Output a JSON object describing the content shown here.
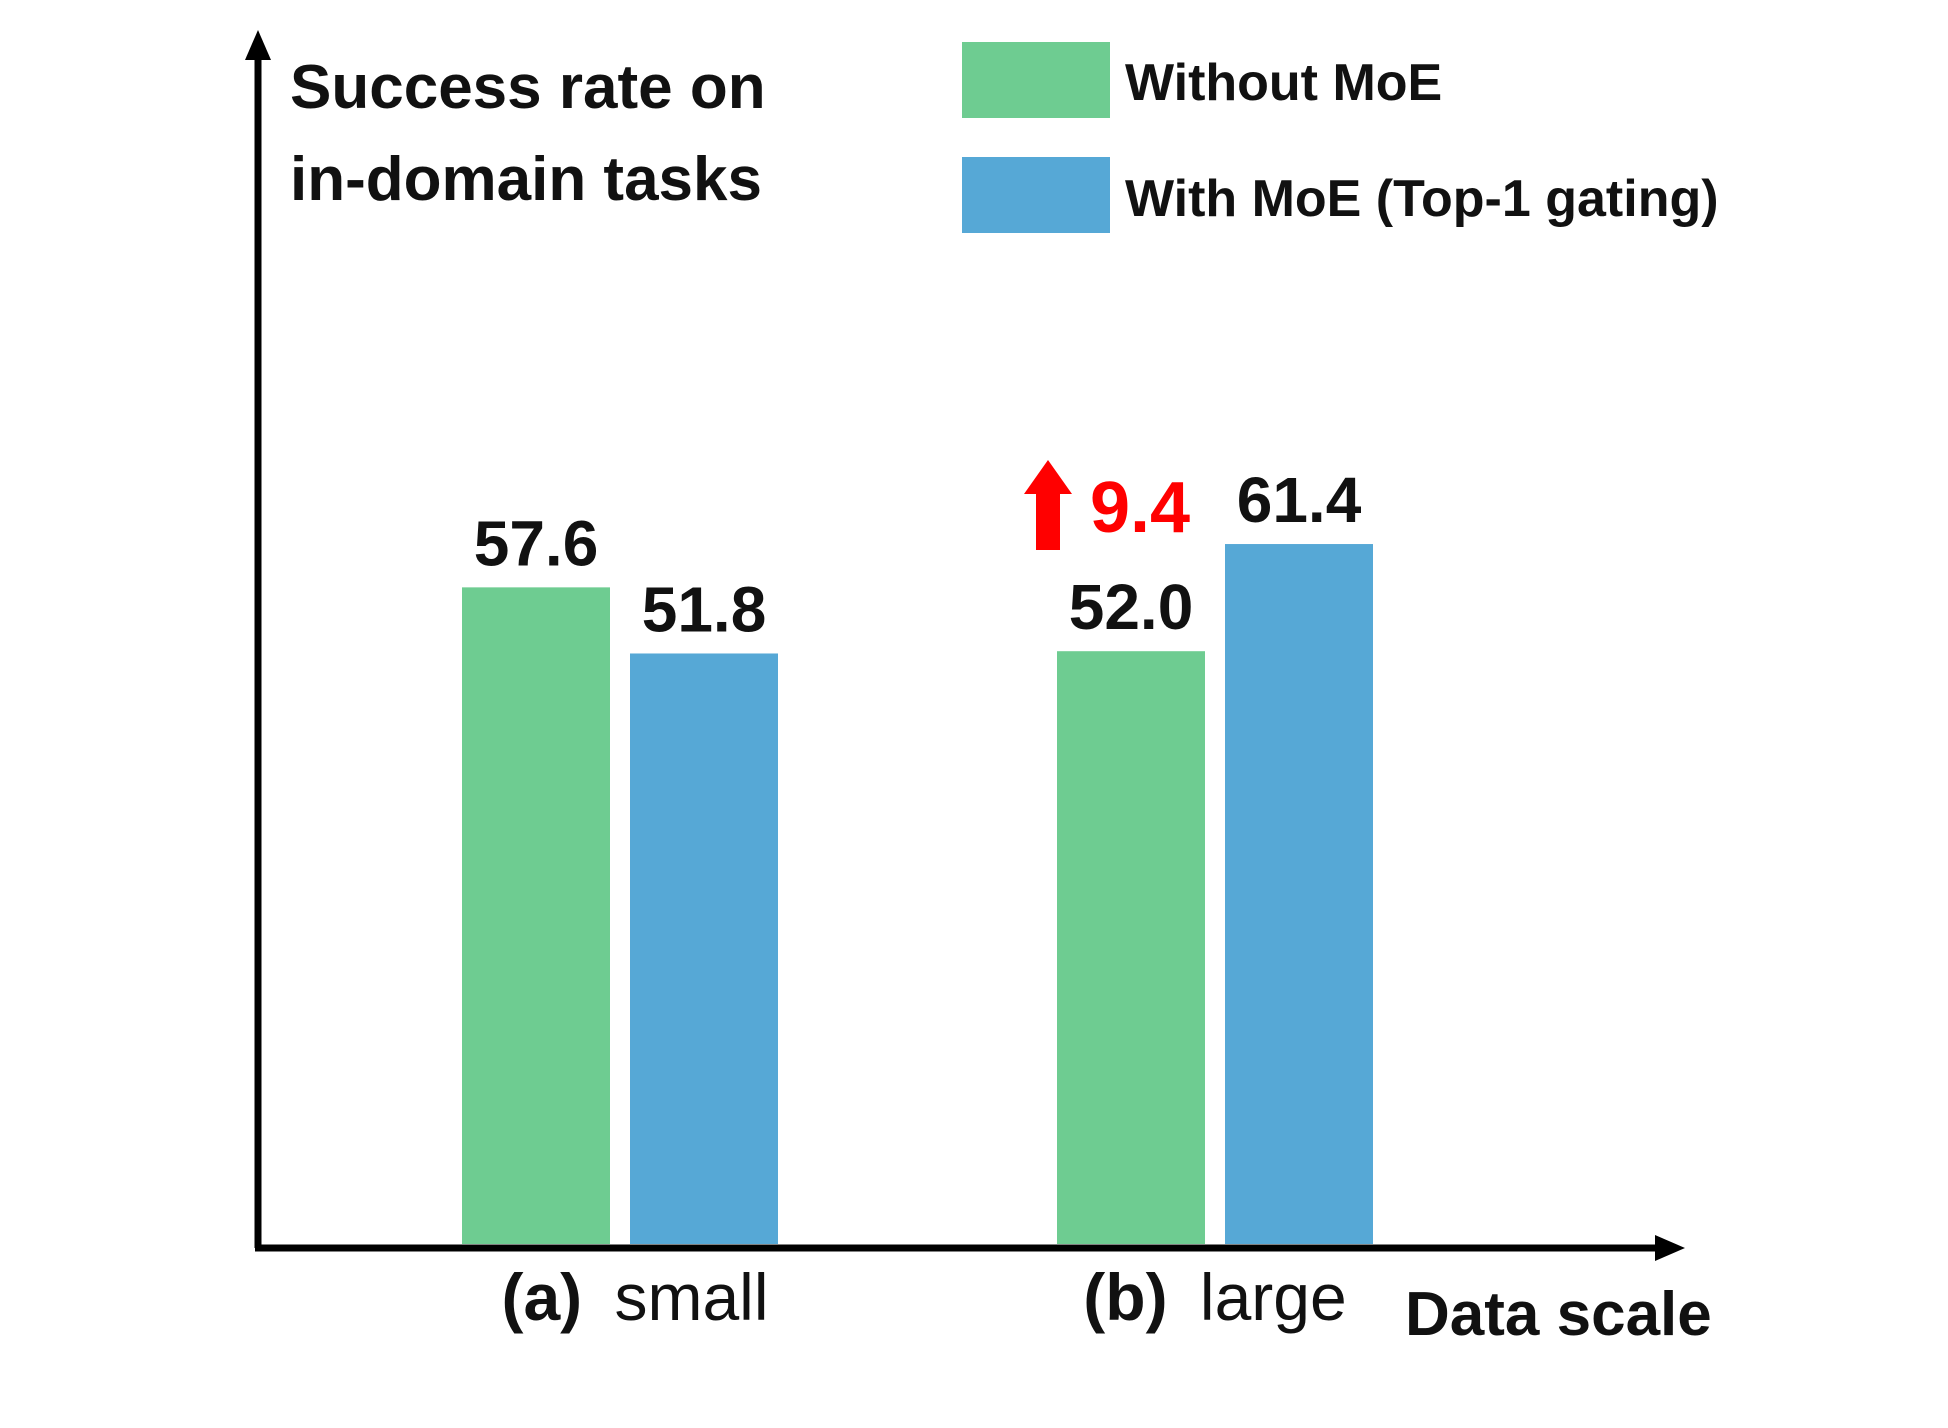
{
  "chart_data": {
    "type": "bar",
    "ylabel_lines": [
      "Success rate on",
      "in-domain tasks"
    ],
    "xlabel": "Data scale",
    "categories": [
      {
        "prefix": "(a)",
        "name": "small"
      },
      {
        "prefix": "(b)",
        "name": "large"
      }
    ],
    "series": [
      {
        "name": "Without MoE",
        "color": "#6ecc91",
        "values": [
          57.6,
          52.0
        ],
        "labels": [
          "57.6",
          "52.0"
        ]
      },
      {
        "name": "With MoE (Top-1 gating)",
        "color": "#56a8d6",
        "values": [
          51.8,
          61.4
        ],
        "labels": [
          "51.8",
          "61.4"
        ]
      }
    ],
    "annotation": {
      "text": "9.4",
      "category_index": 1,
      "color": "#ff0000",
      "icon": "up-arrow-icon"
    },
    "ylim": [
      0,
      65
    ],
    "grid": false,
    "legend": "top-right"
  }
}
